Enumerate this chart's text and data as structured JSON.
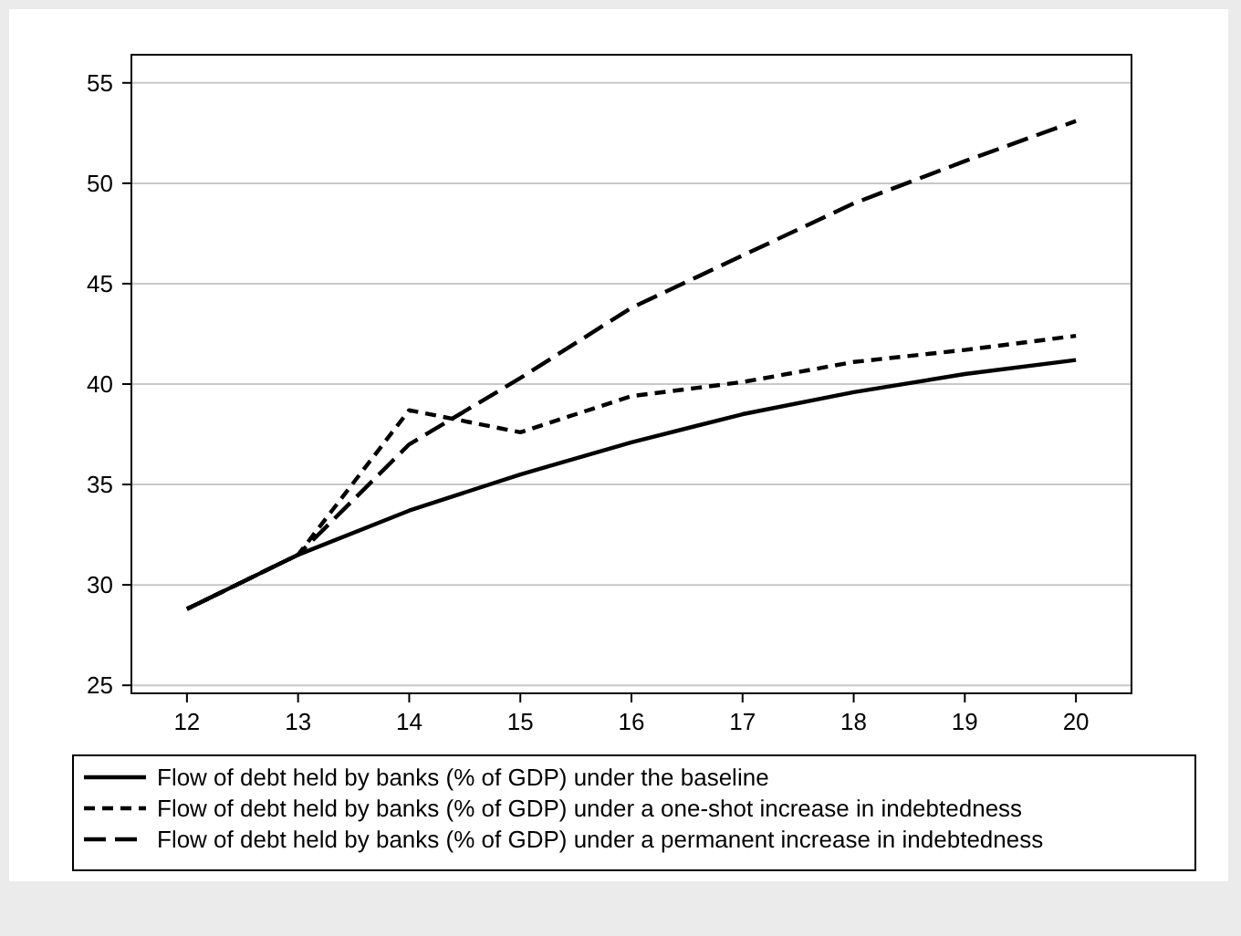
{
  "chart_data": {
    "type": "line",
    "x": [
      12,
      13,
      14,
      15,
      16,
      17,
      18,
      19,
      20
    ],
    "xlim": [
      11.5,
      20.5
    ],
    "xticks": [
      12,
      13,
      14,
      15,
      16,
      17,
      18,
      19,
      20
    ],
    "ylim": [
      24.6,
      56.4
    ],
    "yticks": [
      25,
      30,
      35,
      40,
      45,
      50,
      55
    ],
    "grid": "y",
    "legend": "bottom",
    "marker": "none",
    "series": [
      {
        "name": "Flow of debt held by banks (% of GDP) under the baseline",
        "color": "#000000",
        "line_style": "solid",
        "values": [
          28.8,
          31.5,
          33.7,
          35.5,
          37.1,
          38.5,
          39.6,
          40.5,
          41.2
        ]
      },
      {
        "name": "Flow of debt held by banks (% of GDP) under a one-shot increase in indebtedness",
        "color": "#000000",
        "line_style": "dashed",
        "values": [
          28.8,
          31.5,
          38.7,
          37.6,
          39.4,
          40.1,
          41.1,
          41.7,
          42.4
        ]
      },
      {
        "name": "Flow of debt held by banks (% of GDP) under a permanent increase in indebtedness",
        "color": "#000000",
        "line_style": "dashed",
        "values": [
          28.8,
          31.5,
          37.0,
          40.3,
          43.8,
          46.4,
          49.0,
          51.1,
          53.1
        ]
      }
    ]
  }
}
